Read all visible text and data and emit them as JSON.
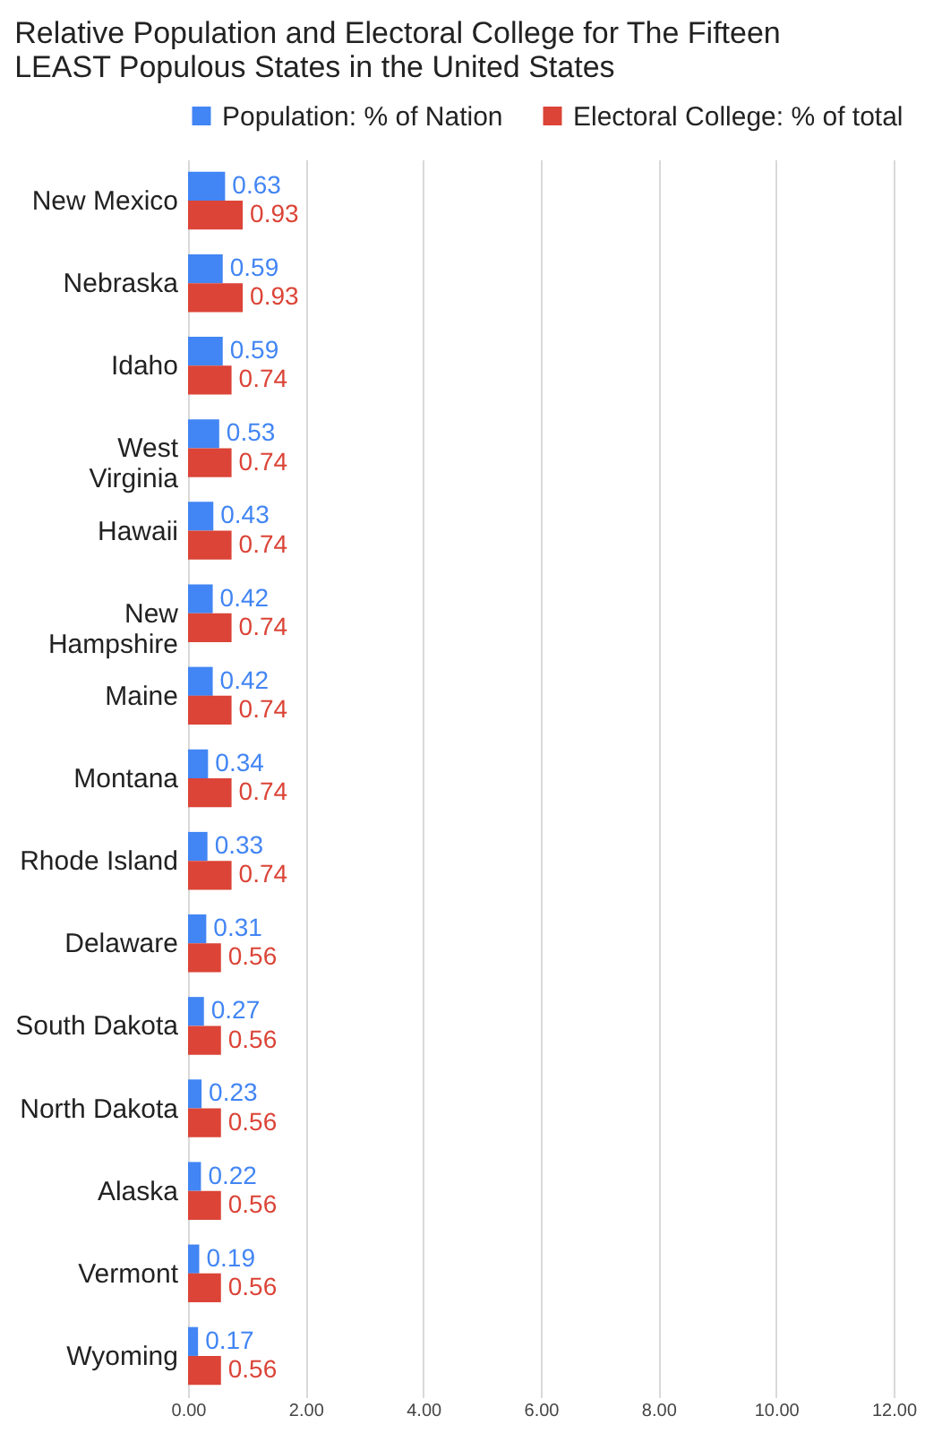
{
  "chart_data": {
    "type": "bar",
    "orientation": "horizontal",
    "title": "Relative Population and Electoral College for The Fifteen LEAST Populous States in the United States",
    "categories": [
      "New Mexico",
      "Nebraska",
      "Idaho",
      "West Virginia",
      "Hawaii",
      "New Hampshire",
      "Maine",
      "Montana",
      "Rhode Island",
      "Delaware",
      "South Dakota",
      "North Dakota",
      "Alaska",
      "Vermont",
      "Wyoming"
    ],
    "series": [
      {
        "name": "Population: % of Nation",
        "color": "#4285f4",
        "values": [
          0.63,
          0.59,
          0.59,
          0.53,
          0.43,
          0.42,
          0.42,
          0.34,
          0.33,
          0.31,
          0.27,
          0.23,
          0.22,
          0.19,
          0.17
        ]
      },
      {
        "name": "Electoral College: % of total",
        "color": "#db4437",
        "values": [
          0.93,
          0.93,
          0.74,
          0.74,
          0.74,
          0.74,
          0.74,
          0.74,
          0.74,
          0.56,
          0.56,
          0.56,
          0.56,
          0.56,
          0.56
        ]
      }
    ],
    "xlim": [
      0,
      12
    ],
    "xticks": [
      {
        "value": 0,
        "label": "0.00"
      },
      {
        "value": 2,
        "label": "2.00"
      },
      {
        "value": 4,
        "label": "4.00"
      },
      {
        "value": 6,
        "label": "6.00"
      },
      {
        "value": 8,
        "label": "8.00"
      },
      {
        "value": 10,
        "label": "10.00"
      },
      {
        "value": 12,
        "label": "12.00"
      }
    ],
    "grid": "x",
    "legend": "top left",
    "data_labels": true
  }
}
